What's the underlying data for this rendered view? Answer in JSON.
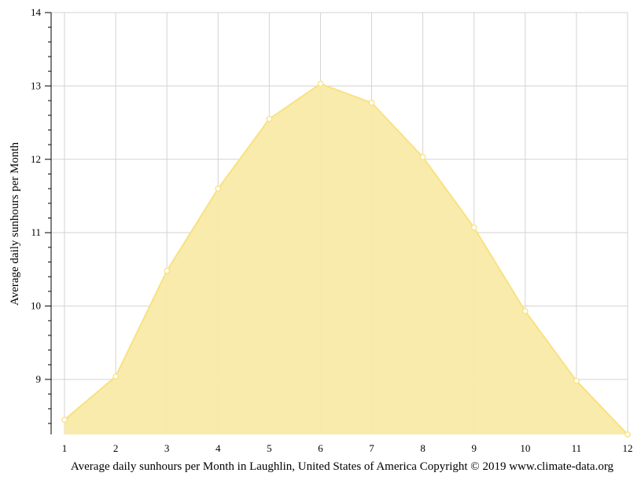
{
  "chart_data": {
    "type": "area",
    "x": [
      1,
      2,
      3,
      4,
      5,
      6,
      7,
      8,
      9,
      10,
      11,
      12
    ],
    "x_tick_labels": [
      "1",
      "2",
      "3",
      "4",
      "5",
      "6",
      "7",
      "8",
      "9",
      "10",
      "11",
      "12"
    ],
    "y": [
      8.45,
      9.04,
      10.48,
      11.6,
      12.55,
      13.03,
      12.77,
      12.03,
      11.07,
      9.93,
      8.98,
      8.25
    ],
    "y_tick_labels": [
      "9",
      "10",
      "11",
      "12",
      "13",
      "14"
    ],
    "ylabel": "Average daily sunhours per Month",
    "xlabel": "",
    "caption": "Average daily sunhours per Month in Laughlin, United States of America Copyright © 2019 www.climate-data.org",
    "xlim": [
      1,
      12
    ],
    "ylim": [
      8.25,
      14
    ],
    "grid": true,
    "colors": {
      "fill": "#f9eaa7",
      "line": "#f8e280",
      "marker_fill": "#ffffff",
      "grid": "#d3d3d3"
    }
  }
}
